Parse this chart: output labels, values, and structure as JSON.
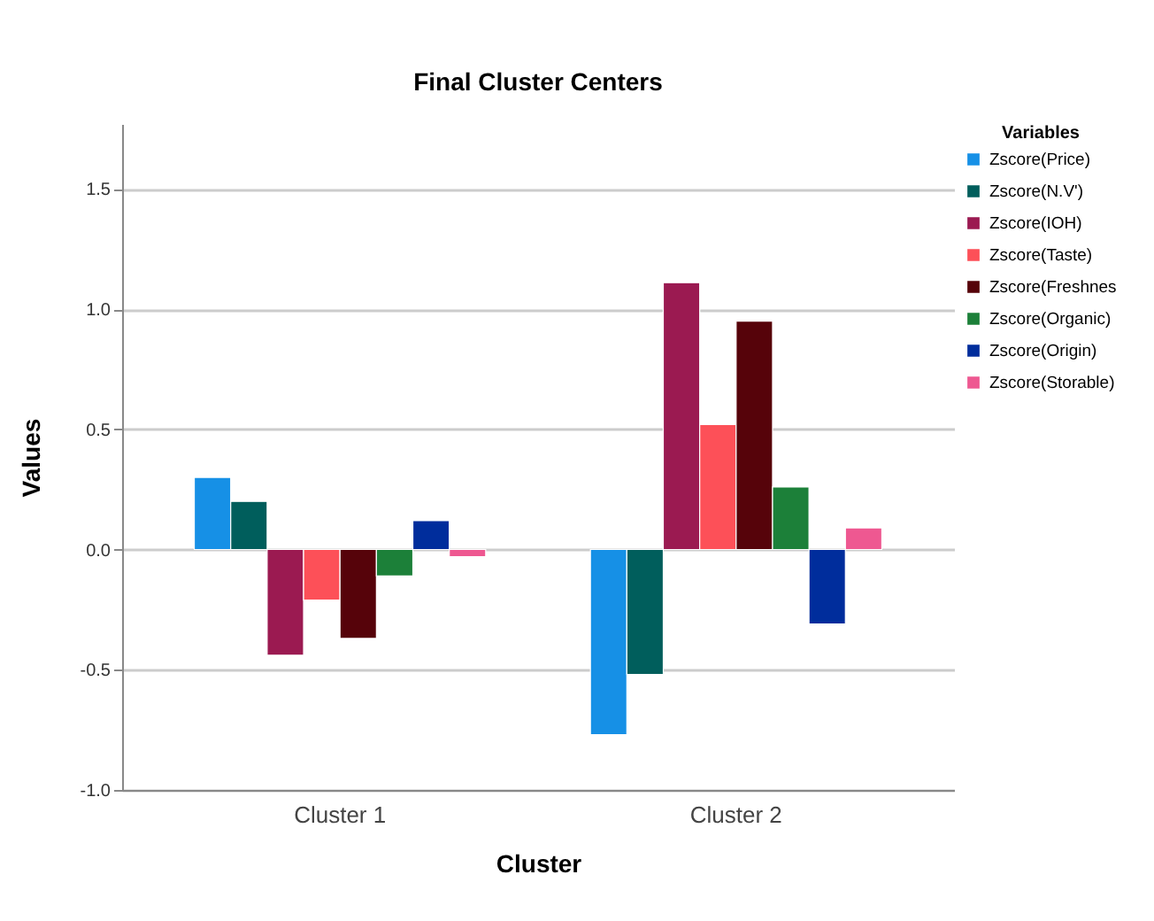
{
  "chart_data": {
    "type": "bar",
    "title": "Final Cluster Centers",
    "xlabel": "Cluster",
    "ylabel": "Values",
    "legend_title": "Variables",
    "categories": [
      "Cluster 1",
      "Cluster 2"
    ],
    "series": [
      {
        "name": "Zscore(Price)",
        "color": "#1690e6",
        "values": [
          0.3,
          -0.77
        ]
      },
      {
        "name": "Zscore(N.V')",
        "color": "#005e5c",
        "values": [
          0.2,
          -0.52
        ]
      },
      {
        "name": "Zscore(IOH)",
        "color": "#9b1a51",
        "values": [
          -0.44,
          1.11
        ]
      },
      {
        "name": "Zscore(Taste)",
        "color": "#fd5058",
        "values": [
          -0.21,
          0.52
        ]
      },
      {
        "name": "Zscore(Freshnes",
        "color": "#56030a",
        "values": [
          -0.37,
          0.95
        ]
      },
      {
        "name": "Zscore(Organic)",
        "color": "#1c8039",
        "values": [
          -0.11,
          0.26
        ]
      },
      {
        "name": "Zscore(Origin)",
        "color": "#002d9c",
        "values": [
          0.12,
          -0.31
        ]
      },
      {
        "name": "Zscore(Storable)",
        "color": "#ee5891",
        "values": [
          -0.03,
          0.09
        ]
      }
    ],
    "ylim": [
      -1,
      1.77
    ],
    "yticks": [
      {
        "value": -1,
        "label": "-1.0"
      },
      -0.5,
      {
        "value": 0,
        "label": "0.0"
      },
      0.5,
      {
        "value": 1,
        "label": "1.0"
      },
      1.5
    ],
    "grid": "y",
    "legend": "top right"
  }
}
